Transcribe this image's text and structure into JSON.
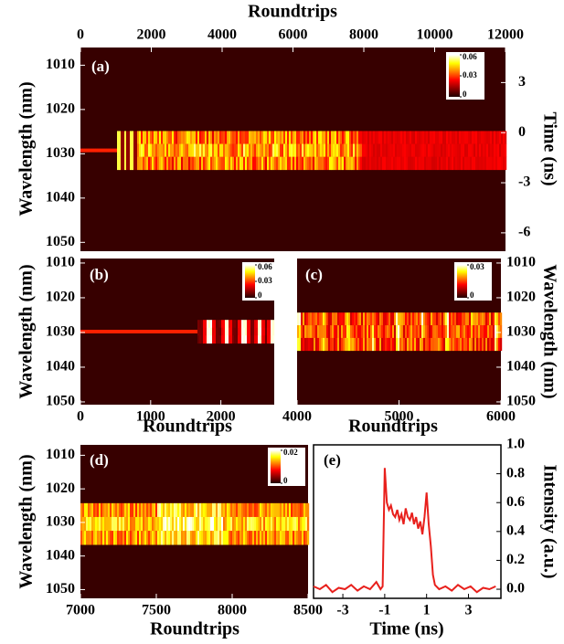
{
  "chart_data": [
    {
      "type": "heatmap",
      "panel": "(a)",
      "xlabel": "Roundtrips",
      "ylabel": "Wavelength (nm)",
      "y2label": "Time (ns)",
      "xlim": [
        0,
        12000
      ],
      "xticks": [
        0,
        2000,
        4000,
        6000,
        8000,
        10000,
        12000
      ],
      "ylim": [
        1052,
        1006
      ],
      "yticks": [
        1010,
        1020,
        1030,
        1040,
        1050
      ],
      "y2lim": [
        -7.1,
        5.1
      ],
      "y2ticks": [
        3,
        0,
        -3,
        -6
      ],
      "colorbar": {
        "lim": [
          0,
          0.06
        ],
        "ticks": [
          0.06,
          0.03,
          0
        ]
      }
    },
    {
      "type": "heatmap",
      "panel": "(b)",
      "xlabel": "Roundtrips",
      "ylabel": "Wavelength (nm)",
      "xlim": [
        0,
        2760
      ],
      "xticks": [
        0,
        1000,
        2000
      ],
      "ylim": [
        1050.8,
        1008.7
      ],
      "yticks": [
        1010,
        1020,
        1030,
        1040,
        1050
      ],
      "colorbar": {
        "lim": [
          0,
          0.06
        ],
        "ticks": [
          0.06,
          0.03,
          0
        ]
      }
    },
    {
      "type": "heatmap",
      "panel": "(c)",
      "xlabel": "Roundtrips",
      "ylabel": "Wavelength (nm)",
      "xlim": [
        4000,
        6000
      ],
      "xticks": [
        4000,
        5000,
        6000
      ],
      "ylim": [
        1050.8,
        1008.7
      ],
      "yticks": [
        1010,
        1020,
        1030,
        1040,
        1050
      ],
      "colorbar": {
        "lim": [
          0,
          0.03
        ],
        "ticks": [
          0.03,
          0
        ]
      }
    },
    {
      "type": "heatmap",
      "panel": "(d)",
      "xlabel": "Roundtrips",
      "ylabel": "Wavelength (nm)",
      "xlim": [
        7000,
        8500
      ],
      "xticks": [
        7000,
        7500,
        8000,
        8500
      ],
      "ylim": [
        1052.6,
        1006.9
      ],
      "yticks": [
        1010,
        1020,
        1030,
        1040,
        1050
      ],
      "colorbar": {
        "lim": [
          0,
          0.02
        ],
        "ticks": [
          0.02,
          0
        ]
      }
    },
    {
      "type": "line",
      "panel": "(e)",
      "xlabel": "Time (ns)",
      "ylabel": "Intensity (a.u.)",
      "color": "#e8201c",
      "xlim": [
        -4.4,
        4.55
      ],
      "xticks": [
        -3,
        -1,
        1,
        3
      ],
      "ylim": [
        -0.063,
        1.0
      ],
      "yticks": [
        {
          "value": 0,
          "label": "0.0"
        },
        0.2,
        0.4,
        0.6,
        0.8,
        {
          "value": 1,
          "label": "1.0"
        }
      ],
      "x": [
        -4.4,
        -4.1,
        -3.8,
        -3.5,
        -3.2,
        -2.9,
        -2.6,
        -2.3,
        -2.0,
        -1.7,
        -1.4,
        -1.2,
        -1.1,
        -1.0,
        -0.9,
        -0.8,
        -0.7,
        -0.6,
        -0.5,
        -0.4,
        -0.3,
        -0.2,
        -0.1,
        0.0,
        0.1,
        0.2,
        0.3,
        0.4,
        0.5,
        0.6,
        0.7,
        0.8,
        0.9,
        1.0,
        1.1,
        1.2,
        1.3,
        1.4,
        1.6,
        1.9,
        2.2,
        2.5,
        2.8,
        3.1,
        3.4,
        3.7,
        4.0,
        4.3
      ],
      "values": [
        0.02,
        0.0,
        0.03,
        -0.02,
        0.01,
        0.0,
        0.03,
        -0.01,
        0.02,
        0.0,
        0.05,
        0.0,
        0.02,
        0.84,
        0.6,
        0.55,
        0.58,
        0.52,
        0.5,
        0.55,
        0.48,
        0.52,
        0.45,
        0.56,
        0.5,
        0.48,
        0.53,
        0.45,
        0.5,
        0.42,
        0.47,
        0.38,
        0.5,
        0.67,
        0.45,
        0.3,
        0.1,
        0.03,
        0.0,
        0.02,
        -0.01,
        0.03,
        0.0,
        0.02,
        -0.02,
        0.01,
        0.0,
        0.02
      ]
    }
  ]
}
